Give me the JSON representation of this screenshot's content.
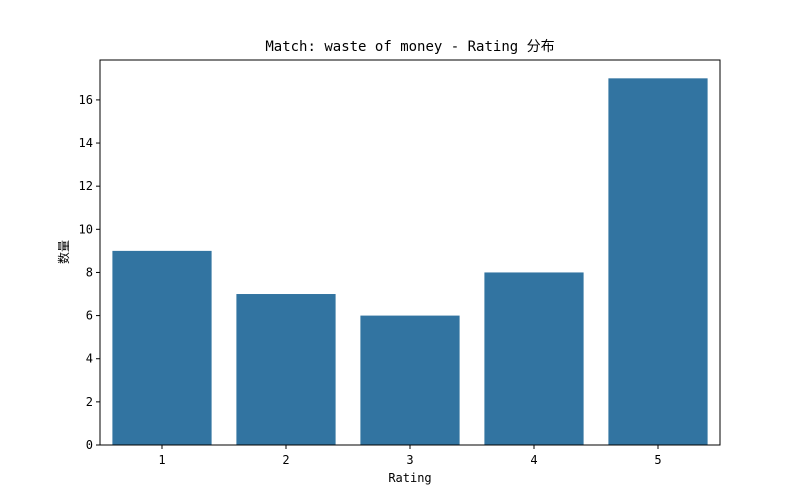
{
  "chart_data": {
    "type": "bar",
    "title": "Match: waste of money - Rating 分布",
    "xlabel": "Rating",
    "ylabel": "数量",
    "categories": [
      "1",
      "2",
      "3",
      "4",
      "5"
    ],
    "values": [
      9,
      7,
      6,
      8,
      17
    ],
    "ylim": [
      0,
      17.85
    ],
    "yticks": [
      0,
      2,
      4,
      6,
      8,
      10,
      12,
      14,
      16
    ],
    "bar_color": "#3274a1",
    "grid": false,
    "legend": "none"
  }
}
